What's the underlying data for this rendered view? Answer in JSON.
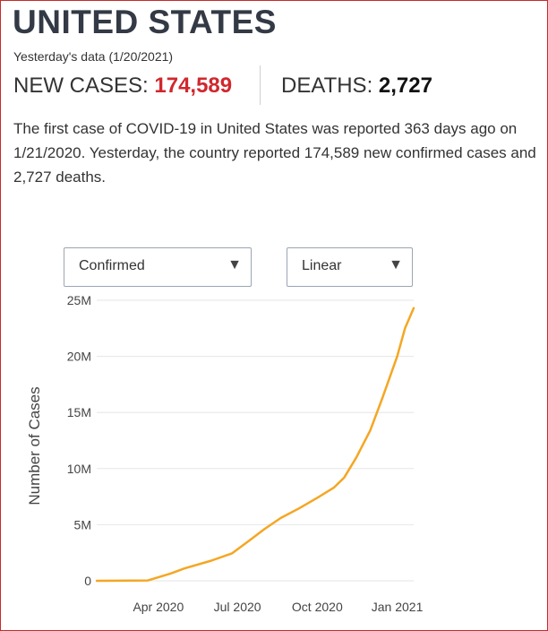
{
  "header": {
    "title": "UNITED STATES",
    "subtitle": "Yesterday's data (1/20/2021)"
  },
  "stats": {
    "new_cases_label": "NEW CASES:",
    "new_cases_value": "174,589",
    "deaths_label": "DEATHS:",
    "deaths_value": "2,727"
  },
  "description": "The first case of COVID-19 in United States was reported 363 days ago on 1/21/2020. Yesterday, the country reported 174,589 new confirmed cases and 2,727 deaths.",
  "controls": {
    "metric_selected": "Confirmed",
    "scale_selected": "Linear"
  },
  "colors": {
    "accent_red": "#d0282d",
    "line": "#f5a623",
    "frame": "#c62b2b"
  },
  "chart_data": {
    "type": "line",
    "title": "",
    "xlabel": "",
    "ylabel": "Number of Cases",
    "ylim": [
      0,
      25000000
    ],
    "yticks": [
      0,
      5000000,
      10000000,
      15000000,
      20000000,
      25000000
    ],
    "ytick_labels": [
      "0",
      "5M",
      "10M",
      "15M",
      "20M",
      "25M"
    ],
    "xticks": [
      "2020-04-01",
      "2020-07-01",
      "2020-10-01",
      "2021-01-01"
    ],
    "xtick_labels": [
      "Apr 2020",
      "Jul 2020",
      "Oct 2020",
      "Jan 2021"
    ],
    "xlim": [
      "2020-01-21",
      "2021-01-20"
    ],
    "grid": true,
    "series": [
      {
        "x": [
          "2020-01-21",
          "2020-03-01",
          "2020-03-20",
          "2020-04-15",
          "2020-05-01",
          "2020-06-01",
          "2020-06-25",
          "2020-07-15",
          "2020-08-01",
          "2020-08-20",
          "2020-09-10",
          "2020-10-01",
          "2020-10-20",
          "2020-11-01",
          "2020-11-15",
          "2020-12-01",
          "2020-12-15",
          "2021-01-01",
          "2021-01-10",
          "2021-01-20"
        ],
        "y": [
          0,
          20000,
          30000,
          650000,
          1100000,
          1800000,
          2450000,
          3600000,
          4600000,
          5600000,
          6450000,
          7400000,
          8300000,
          9200000,
          11000000,
          13400000,
          16300000,
          20000000,
          22500000,
          24300000
        ]
      }
    ]
  }
}
